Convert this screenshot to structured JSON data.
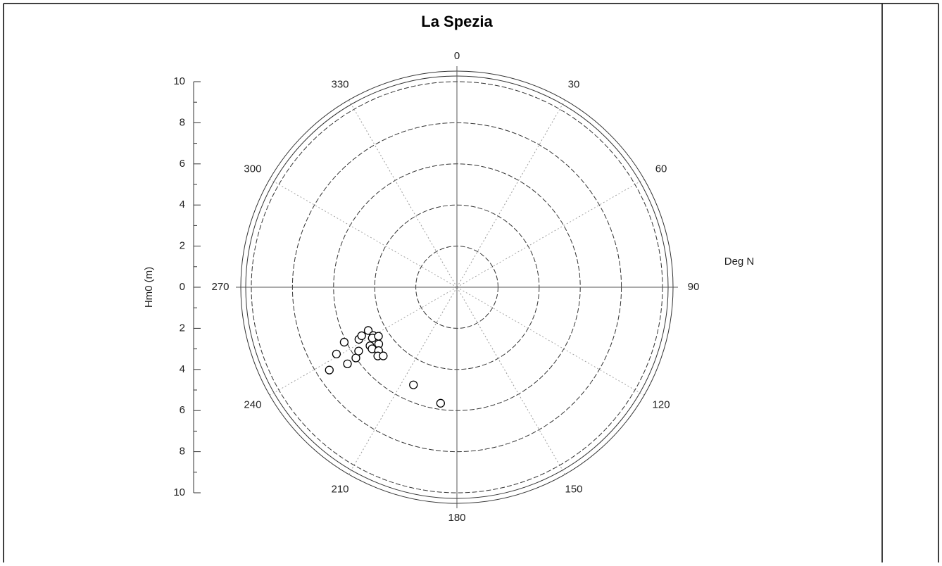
{
  "chart_data": {
    "type": "polar_scatter",
    "title": "La Spezia",
    "r_axis_label": "Hm0 (m)",
    "theta_axis_label": "Deg N",
    "rlim": [
      0,
      10
    ],
    "rticks": [
      0,
      2,
      4,
      6,
      8,
      10
    ],
    "theta_ticks": [
      0,
      30,
      60,
      90,
      120,
      150,
      180,
      210,
      240,
      270,
      300,
      330
    ],
    "series": [
      {
        "color": "#000000",
        "theta": [
          188,
          204,
          237,
          241,
          235,
          244,
          235,
          237,
          242,
          243,
          244,
          240,
          236,
          234,
          234,
          231,
          229,
          227,
          239,
          238
        ],
        "r": [
          5.7,
          5.2,
          7.4,
          6.7,
          6.5,
          6.1,
          6.0,
          5.7,
          5.4,
          5.2,
          4.8,
          4.7,
          5.1,
          5.1,
          4.7,
          4.9,
          5.1,
          4.9,
          4.8,
          4.5
        ]
      }
    ]
  }
}
